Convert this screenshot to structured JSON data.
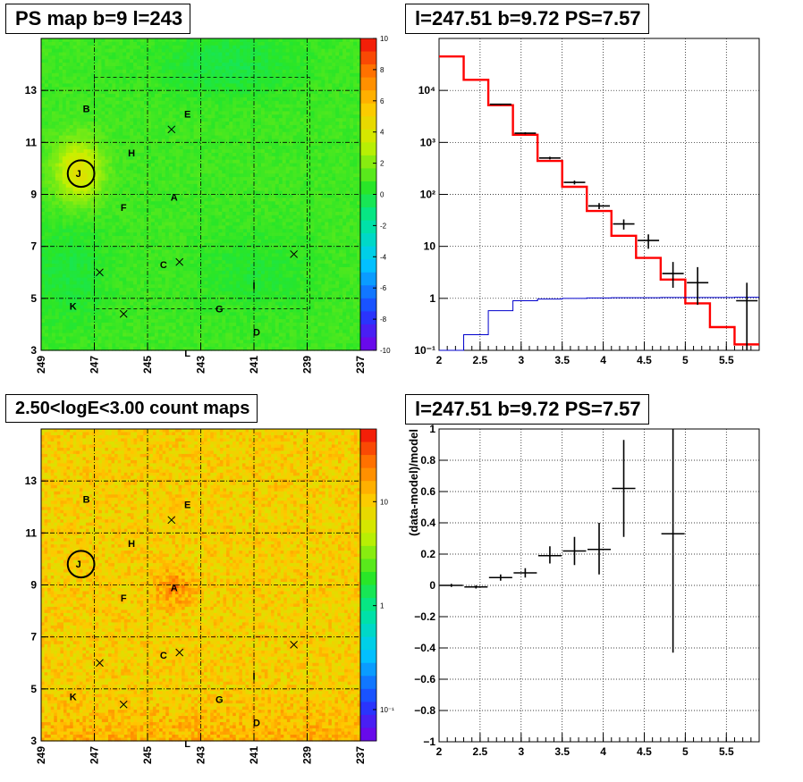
{
  "titles": {
    "ps_map": "PS map b=9 l=243",
    "spectrum": "l=247.51 b=9.72 PS=7.57",
    "count_map": "2.50<logE<3.00 count maps",
    "residual": "l=247.51 b=9.72 PS=7.57"
  },
  "map_axes": {
    "x_ticks": [
      "249",
      "247",
      "245",
      "243",
      "241",
      "239",
      "237"
    ],
    "y_ticks": [
      "3",
      "5",
      "7",
      "9",
      "11",
      "13"
    ]
  },
  "ps_colorbar_ticks": [
    "10",
    "8",
    "6",
    "4",
    "2",
    "0",
    "-2",
    "-4",
    "-6",
    "-8",
    "-10"
  ],
  "count_colorbar_ticks": [
    "10",
    "1",
    "10⁻¹"
  ],
  "source_labels": [
    {
      "label": "B",
      "l": 247.3,
      "b": 12.3
    },
    {
      "label": "E",
      "l": 243.5,
      "b": 12.1
    },
    {
      "label": "H",
      "l": 245.6,
      "b": 10.6
    },
    {
      "label": "J",
      "l": 247.6,
      "b": 9.8
    },
    {
      "label": "F",
      "l": 245.9,
      "b": 8.5
    },
    {
      "label": "A",
      "l": 244.0,
      "b": 8.9
    },
    {
      "label": "C",
      "l": 244.4,
      "b": 6.3
    },
    {
      "label": "I",
      "l": 241.0,
      "b": 5.5
    },
    {
      "label": "K",
      "l": 247.8,
      "b": 4.7
    },
    {
      "label": "G",
      "l": 242.3,
      "b": 4.6
    },
    {
      "label": "D",
      "l": 240.9,
      "b": 3.7
    },
    {
      "label": "L",
      "l": 243.5,
      "b": 2.9
    }
  ],
  "cross_markers": [
    {
      "l": 244.1,
      "b": 11.5
    },
    {
      "l": 246.8,
      "b": 6.0
    },
    {
      "l": 245.9,
      "b": 4.4
    },
    {
      "l": 243.8,
      "b": 6.4
    },
    {
      "l": 239.5,
      "b": 6.7
    }
  ],
  "circle_marker": {
    "l": 247.5,
    "b": 9.8,
    "r": 0.5
  },
  "chart_data": [
    {
      "type": "heatmap",
      "panel": "ps_map",
      "title": "PS map b=9 l=243",
      "xlim": [
        249,
        237
      ],
      "ylim": [
        3,
        15
      ],
      "colorbar_range": [
        -10,
        10
      ],
      "grid": true
    },
    {
      "type": "line",
      "panel": "spectrum",
      "title": "l=247.51 b=9.72 PS=7.57",
      "y_scale": "log",
      "xlim": [
        2,
        5.9
      ],
      "ylim": [
        0.1,
        100000
      ],
      "x_ticks": [
        "2",
        "2.5",
        "3",
        "3.5",
        "4",
        "4.5",
        "5",
        "5.5"
      ],
      "y_ticks": [
        "10⁻¹",
        "1",
        "10",
        "10²",
        "10³",
        "10⁴"
      ],
      "grid": true,
      "bin_edges": [
        2.0,
        2.3,
        2.6,
        2.9,
        3.2,
        3.5,
        3.8,
        4.1,
        4.4,
        4.7,
        5.0,
        5.3,
        5.6,
        5.9
      ],
      "series": [
        {
          "color": "#ff0000",
          "values": [
            45000,
            16000,
            5200,
            1400,
            440,
            140,
            48,
            16,
            6,
            2.3,
            0.8,
            0.28,
            0.13
          ]
        },
        {
          "color": "#0000cc",
          "values": [
            0.1,
            0.2,
            0.58,
            0.9,
            0.97,
            1.0,
            1.02,
            1.03,
            1.03,
            1.04,
            1.04,
            1.04,
            1.05
          ]
        },
        {
          "color": "#000000",
          "points": [
            {
              "x": 2.75,
              "y": 5400,
              "ylo": 5200,
              "yhi": 5600
            },
            {
              "x": 3.05,
              "y": 1500,
              "ylo": 1430,
              "yhi": 1570
            },
            {
              "x": 3.35,
              "y": 500,
              "ylo": 470,
              "yhi": 530
            },
            {
              "x": 3.65,
              "y": 170,
              "ylo": 155,
              "yhi": 185
            },
            {
              "x": 3.95,
              "y": 60,
              "ylo": 52,
              "yhi": 68
            },
            {
              "x": 4.25,
              "y": 27,
              "ylo": 21,
              "yhi": 33
            },
            {
              "x": 4.55,
              "y": 13,
              "ylo": 9,
              "yhi": 17
            },
            {
              "x": 4.85,
              "y": 3.0,
              "ylo": 1.6,
              "yhi": 5.0
            },
            {
              "x": 5.15,
              "y": 2.0,
              "ylo": 0.75,
              "yhi": 4.0
            },
            {
              "x": 5.75,
              "y": 0.9,
              "ylo": 0.1,
              "yhi": 2.0
            }
          ]
        }
      ]
    },
    {
      "type": "heatmap",
      "panel": "count_map",
      "title": "2.50<logE<3.00 count maps",
      "xlim": [
        249,
        237
      ],
      "ylim": [
        3,
        15
      ],
      "colorbar_scale": "log",
      "colorbar_range": [
        0.05,
        50
      ],
      "grid": true
    },
    {
      "type": "scatter",
      "panel": "residual",
      "title": "l=247.51 b=9.72 PS=7.57",
      "ylabel": "(data-model)/model",
      "xlim": [
        2,
        5.9
      ],
      "ylim": [
        -1,
        1
      ],
      "x_ticks": [
        "2",
        "2.5",
        "3",
        "3.5",
        "4",
        "4.5",
        "5",
        "5.5"
      ],
      "y_ticks": [
        "−1",
        "−0.8",
        "−0.6",
        "−0.4",
        "−0.2",
        "0",
        "0.2",
        "0.4",
        "0.6",
        "0.8",
        "1"
      ],
      "grid": true,
      "points": [
        {
          "x": 2.15,
          "y": 0.0,
          "ylo": -0.01,
          "yhi": 0.01
        },
        {
          "x": 2.45,
          "y": -0.01,
          "ylo": -0.02,
          "yhi": 0.0
        },
        {
          "x": 2.75,
          "y": 0.05,
          "ylo": 0.03,
          "yhi": 0.07
        },
        {
          "x": 3.05,
          "y": 0.08,
          "ylo": 0.05,
          "yhi": 0.11
        },
        {
          "x": 3.35,
          "y": 0.19,
          "ylo": 0.14,
          "yhi": 0.25
        },
        {
          "x": 3.65,
          "y": 0.22,
          "ylo": 0.13,
          "yhi": 0.31
        },
        {
          "x": 3.95,
          "y": 0.23,
          "ylo": 0.07,
          "yhi": 0.4
        },
        {
          "x": 4.25,
          "y": 0.62,
          "ylo": 0.31,
          "yhi": 0.93
        },
        {
          "x": 4.85,
          "y": 0.33,
          "ylo": -0.43,
          "yhi": 1.0
        }
      ]
    }
  ]
}
